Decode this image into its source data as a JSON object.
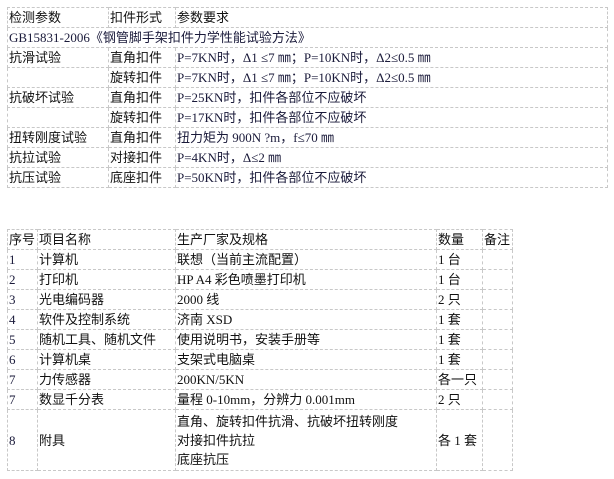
{
  "table1": {
    "headers": [
      "检测参数",
      "扣件形式",
      "参数要求"
    ],
    "standard": "GB15831-2006《钢管脚手架扣件力学性能试验方法》",
    "rows": [
      [
        "抗滑试验",
        "直角扣件",
        "P=7KN时，Δ1 ≤7 ㎜；P=10KN时，Δ2≤0.5 ㎜"
      ],
      [
        "",
        "旋转扣件",
        "P=7KN时，Δ1 ≤7 ㎜；P=10KN时，Δ2≤0.5 ㎜"
      ],
      [
        "抗破坏试验",
        "直角扣件",
        "P=25KN时，扣件各部位不应破坏"
      ],
      [
        "",
        "旋转扣件",
        "P=17KN时，扣件各部位不应破坏"
      ],
      [
        "扭转刚度试验",
        "直角扣件",
        "扭力矩为 900N ?m，f≤70 ㎜"
      ],
      [
        "抗拉试验",
        "对接扣件",
        "P=4KN时，Δ≤2 ㎜"
      ],
      [
        "抗压试验",
        "底座扣件",
        "P=50KN时，扣件各部位不应破坏"
      ]
    ]
  },
  "table2": {
    "headers": [
      "序号",
      "项目名称",
      "生产厂家及规格",
      "数量",
      "备注"
    ],
    "rows": [
      [
        "1",
        "计算机",
        "联想（当前主流配置）",
        "1 台",
        ""
      ],
      [
        "2",
        "打印机",
        "HP A4 彩色喷墨打印机",
        "1 台",
        ""
      ],
      [
        "3",
        "光电编码器",
        "2000 线",
        "2 只",
        ""
      ],
      [
        "4",
        "软件及控制系统",
        "济南 XSD",
        "1 套",
        ""
      ],
      [
        "5",
        "随机工具、随机文件",
        "使用说明书，安装手册等",
        "1 套",
        ""
      ],
      [
        "6",
        "计算机桌",
        "支架式电脑桌",
        "1 套",
        ""
      ],
      [
        "7",
        "力传感器",
        "200KN/5KN",
        "各一只",
        ""
      ],
      [
        "7",
        "数显千分表",
        "量程 0-10mm，分辨力 0.001mm",
        "2 只",
        ""
      ]
    ],
    "last_row": {
      "no": "8",
      "name": "附具",
      "spec_lines": [
        "直角、旋转扣件抗滑、抗破坏扭转刚度",
        "对接扣件抗拉",
        "底座抗压"
      ],
      "qty": "各 1 套",
      "note": ""
    }
  }
}
